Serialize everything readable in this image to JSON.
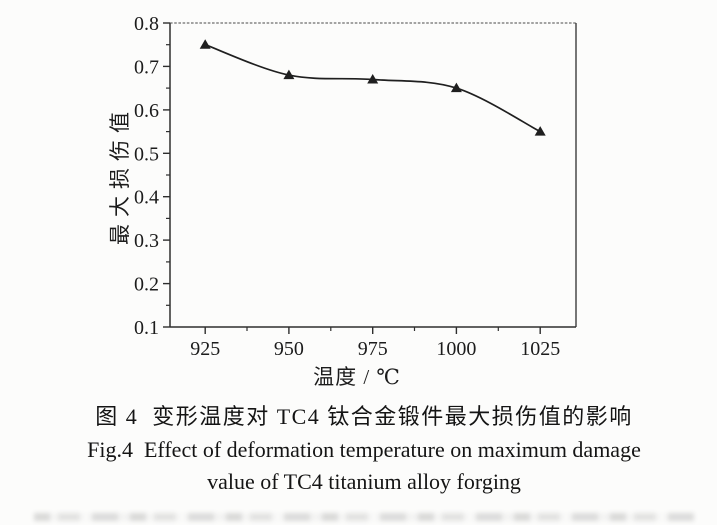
{
  "figure": {
    "ink_color": "#1f1f1f",
    "background": "#fcfcfb"
  },
  "captions": {
    "zh": "图 4  变形温度对 TC4 钛合金锻件最大损伤值的影响",
    "en_line1": "Fig.4  Effect of deformation temperature on maximum damage",
    "en_line2": "value of TC4 titanium alloy forging"
  },
  "chart_data": {
    "type": "line",
    "title": "",
    "xlabel": "温度 / ℃",
    "ylabel": "最大损伤值",
    "x": [
      925,
      950,
      975,
      1000,
      1025
    ],
    "values": [
      0.75,
      0.68,
      0.67,
      0.65,
      0.55
    ],
    "xlim": [
      914.5,
      1035.7
    ],
    "ylim": [
      0.1,
      0.8
    ],
    "x_ticks": [
      925,
      950,
      975,
      1000,
      1025
    ],
    "x_tick_labels": [
      "925",
      "950",
      "975",
      "1000",
      "1025"
    ],
    "x_minor_ticks": [
      937.5,
      962.5,
      987.5,
      1012.5
    ],
    "y_ticks": [
      0.1,
      0.2,
      0.3,
      0.4,
      0.5,
      0.6,
      0.7,
      0.8
    ],
    "y_tick_labels": [
      "0.1",
      "0.2",
      "0.3",
      "0.4",
      "0.5",
      "0.6",
      "0.7",
      "0.8"
    ],
    "y_minor_ticks": [
      0.15,
      0.25,
      0.35,
      0.45,
      0.55,
      0.65,
      0.75
    ],
    "marker": "filled-triangle-up",
    "line_color": "#1f1f1f",
    "axis_color": "#2e2e2e",
    "grid": false,
    "legend": false,
    "frame": "box"
  }
}
